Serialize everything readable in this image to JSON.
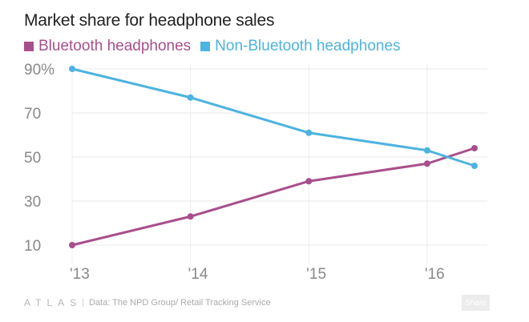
{
  "chart_data": {
    "type": "line",
    "title": "Market share for headphone sales",
    "xlabel": "",
    "ylabel": "",
    "x": [
      2013,
      2014,
      2015,
      2016,
      2016.4
    ],
    "xticks": [
      "'13",
      "'14",
      "'15",
      "'16"
    ],
    "yticks": [
      "90%",
      "70",
      "50",
      "30",
      "10"
    ],
    "ylim": [
      4,
      92
    ],
    "grid": true,
    "legend": "top-left",
    "series": [
      {
        "name": "Bluetooth headphones",
        "color": "#a84f8b",
        "values": [
          10,
          23,
          39,
          47,
          54
        ]
      },
      {
        "name": "Non-Bluetooth headphones",
        "color": "#4db3e0",
        "values": [
          90,
          77,
          61,
          53,
          46
        ]
      }
    ]
  },
  "footer": {
    "brand": "ATLAS",
    "source": "Data: The NPD Group/ Retail Tracking Service",
    "share_label": "Share"
  }
}
